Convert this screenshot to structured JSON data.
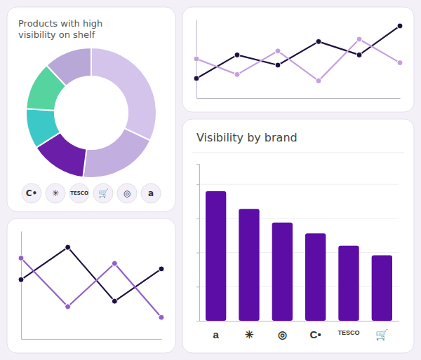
{
  "chart_data": [
    {
      "type": "pie",
      "title": "Products with high\nvisibility on shelf",
      "values": [
        32,
        20,
        14,
        10,
        12,
        12
      ],
      "colors": [
        "#d4c4ec",
        "#c2aedf",
        "#6b1fa8",
        "#3dc8c8",
        "#56d4a0",
        "#b8a8d8"
      ],
      "annotations": [
        "C•",
        "✳",
        "TESCO",
        "🛒",
        "◎",
        "a"
      ]
    },
    {
      "type": "line",
      "x": [
        0,
        1,
        2,
        3,
        4,
        5
      ],
      "series": [
        {
          "color": "#1e1040",
          "marker": "circle",
          "values": [
            0.25,
            0.55,
            0.42,
            0.72,
            0.55,
            0.92
          ]
        },
        {
          "color": "#c49fe0",
          "marker": "circle",
          "values": [
            0.5,
            0.3,
            0.6,
            0.22,
            0.75,
            0.45
          ]
        }
      ],
      "xlim": [
        0,
        5
      ],
      "ylim": [
        0,
        1
      ],
      "tick_labels": false
    },
    {
      "type": "bar",
      "title": "Visibility by brand",
      "categories": [
        "a",
        "✳",
        "◎",
        "C•",
        "TESCO",
        "🛒"
      ],
      "values": [
        95,
        82,
        72,
        64,
        55,
        48
      ],
      "color": "#5b0da6",
      "ylim": [
        0,
        115
      ],
      "yticks": [
        25,
        50,
        75,
        100
      ],
      "grid": true,
      "tick_labels": "x"
    },
    {
      "type": "line",
      "x": [
        0,
        1,
        2,
        3
      ],
      "series": [
        {
          "color": "#1e1040",
          "marker": "circle",
          "values": [
            0.55,
            0.85,
            0.35,
            0.65
          ]
        },
        {
          "color": "#9060c8",
          "marker": "circle",
          "values": [
            0.75,
            0.3,
            0.7,
            0.2
          ]
        }
      ],
      "xlim": [
        0,
        3
      ],
      "ylim": [
        0,
        1
      ],
      "tick_labels": false
    }
  ]
}
